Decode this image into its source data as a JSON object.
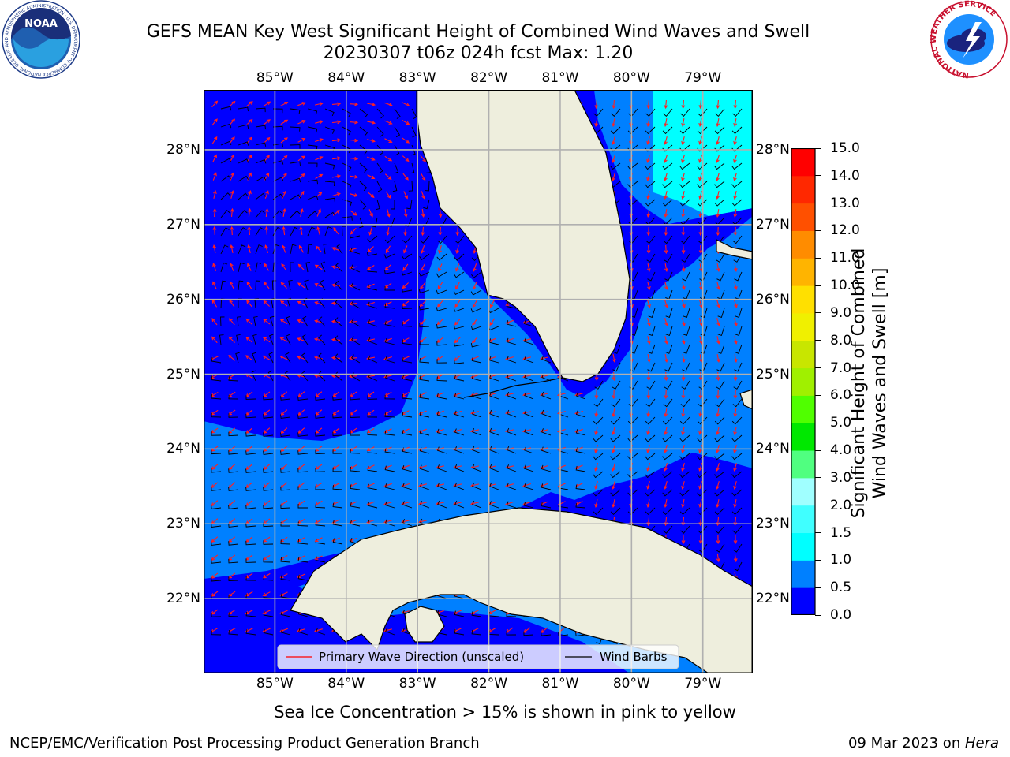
{
  "header": {
    "title_line1": "GEFS MEAN Key West Significant Height of Combined Wind Waves and Swell",
    "title_line2": "20230307 t06z 024h fcst   Max: 1.20"
  },
  "logos": {
    "left_name": "NOAA",
    "left_ring_text": "NATIONAL OCEANIC AND ATMOSPHERIC ADMINISTRATION · U.S. DEPARTMENT OF COMMERCE",
    "right_ring_text": "NATIONAL WEATHER SERVICE"
  },
  "map": {
    "lon_labels": [
      "85°W",
      "84°W",
      "83°W",
      "82°W",
      "81°W",
      "80°W",
      "79°W"
    ],
    "lat_labels": [
      "28°N",
      "27°N",
      "26°N",
      "25°N",
      "24°N",
      "23°N",
      "22°N"
    ],
    "lon_range": [
      -86.0,
      -78.3
    ],
    "lat_range": [
      21.0,
      28.8
    ],
    "grid": true,
    "land_color": "#eeeedd",
    "legend": {
      "wave_label": "Primary Wave Direction (unscaled)",
      "wind_label": "Wind Barbs",
      "wave_color": "#ff0000",
      "wind_color": "#000000"
    }
  },
  "colorbar": {
    "title_line1": "Significant Height of Combined",
    "title_line2": "Wind Waves and Swell [m]",
    "labels": [
      "15.0",
      "14.0",
      "13.0",
      "12.0",
      "11.0",
      "10.0",
      "9.0",
      "8.0",
      "7.0",
      "6.0",
      "5.0",
      "4.0",
      "3.0",
      "2.0",
      "1.5",
      "1.0",
      "0.5",
      "0.0"
    ],
    "levels": [
      0.0,
      0.5,
      1.0,
      1.5,
      2.0,
      3.0,
      4.0,
      5.0,
      6.0,
      7.0,
      8.0,
      9.0,
      10.0,
      11.0,
      12.0,
      13.0,
      14.0,
      15.0
    ],
    "colors": [
      "#0000ff",
      "#0080ff",
      "#00ffff",
      "#40ffff",
      "#a0ffff",
      "#50ff80",
      "#00e800",
      "#50ff00",
      "#a0f000",
      "#c8e600",
      "#f0f000",
      "#ffe000",
      "#ffb400",
      "#ff8c00",
      "#ff5000",
      "#ff2800",
      "#ff0000"
    ]
  },
  "note": "Sea Ice Concentration > 15% is shown in pink to yellow",
  "footer": {
    "left": "NCEP/EMC/Verification Post Processing Product Generation Branch",
    "right_prefix": "09 Mar 2023 on ",
    "right_host": "Hera"
  }
}
